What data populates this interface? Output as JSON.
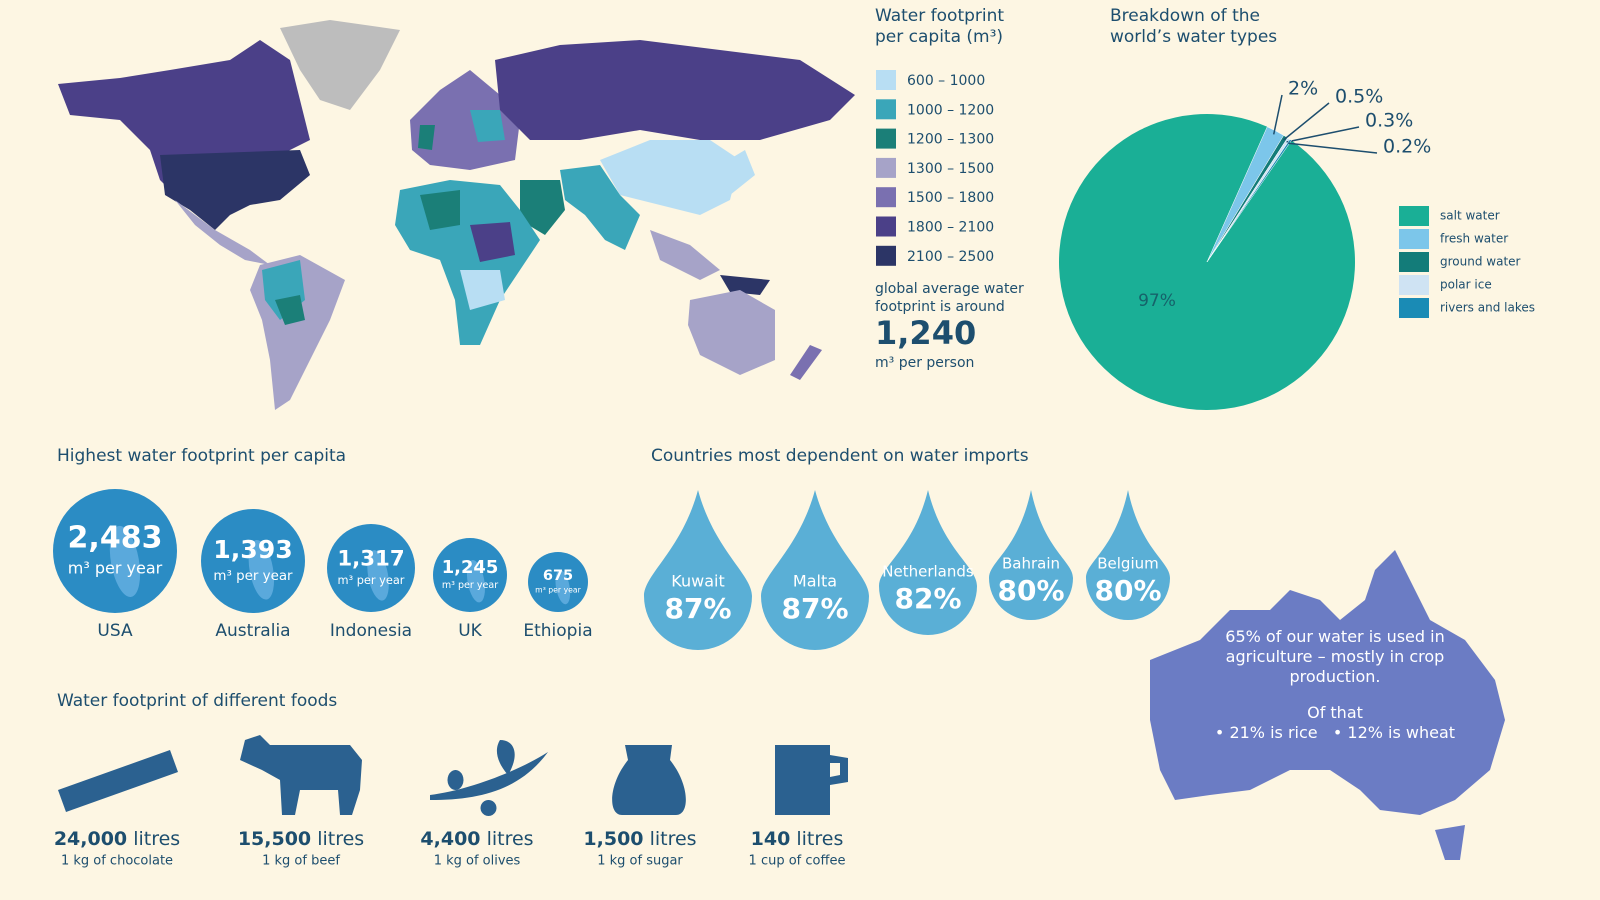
{
  "map_legend": {
    "title": "Water footprint per capita (m³)",
    "items": [
      {
        "label": "600 – 1000",
        "color": "#b8def3"
      },
      {
        "label": "1000 – 1200",
        "color": "#3aa6b9"
      },
      {
        "label": "1200 – 1300",
        "color": "#1b7f78"
      },
      {
        "label": "1300 – 1500",
        "color": "#a6a3c8"
      },
      {
        "label": "1500 – 1800",
        "color": "#7a70b0"
      },
      {
        "label": "1800 – 2100",
        "color": "#4b4088"
      },
      {
        "label": "2100 – 2500",
        "color": "#2c3566"
      }
    ],
    "note": "global average water footprint is around",
    "average": "1,240",
    "unit": "m³ per person"
  },
  "chart_data": {
    "type": "pie",
    "title": "Breakdown of the world’s water types",
    "categories": [
      "salt water",
      "fresh water",
      "ground water",
      "polar ice",
      "rivers and lakes"
    ],
    "values": [
      97,
      2,
      0.5,
      0.3,
      0.2
    ],
    "value_labels": [
      "97%",
      "2%",
      "0.5%",
      "0.3%",
      "0.2%"
    ],
    "colors": [
      "#1aaf96",
      "#7cc6ea",
      "#137c79",
      "#cfe3f3",
      "#1a8bb5"
    ]
  },
  "highest": {
    "title": "Highest water footprint per capita",
    "items": [
      {
        "value": "2,483",
        "unit": "m³ per year",
        "country": "USA"
      },
      {
        "value": "1,393",
        "unit": "m³ per year",
        "country": "Australia"
      },
      {
        "value": "1,317",
        "unit": "m³ per year",
        "country": "Indonesia"
      },
      {
        "value": "1,245",
        "unit": "m³ per year",
        "country": "UK"
      },
      {
        "value": "675",
        "unit": "m³ per year",
        "country": "Ethiopia"
      }
    ]
  },
  "imports": {
    "title": "Countries most dependent on water imports",
    "items": [
      {
        "country": "Kuwait",
        "share": "87%"
      },
      {
        "country": "Malta",
        "share": "87%"
      },
      {
        "country": "Netherlands",
        "share": "82%"
      },
      {
        "country": "Bahrain",
        "share": "80%"
      },
      {
        "country": "Belgium",
        "share": "80%"
      }
    ]
  },
  "foods": {
    "title": "Water footprint of different foods",
    "items": [
      {
        "amount": "24,000",
        "unit": "litres",
        "item": "1 kg of chocolate"
      },
      {
        "amount": "15,500",
        "unit": "litres",
        "item": "1 kg of beef"
      },
      {
        "amount": "4,400",
        "unit": "litres",
        "item": "1 kg of olives"
      },
      {
        "amount": "1,500",
        "unit": "litres",
        "item": "1 kg of sugar"
      },
      {
        "amount": "140",
        "unit": "litres",
        "item": "1 cup of coffee"
      }
    ]
  },
  "australia": {
    "text": "65% of our water is used in agriculture – mostly in crop production.",
    "of_that": "Of that",
    "points": [
      "21% is rice",
      "12% is wheat"
    ]
  }
}
